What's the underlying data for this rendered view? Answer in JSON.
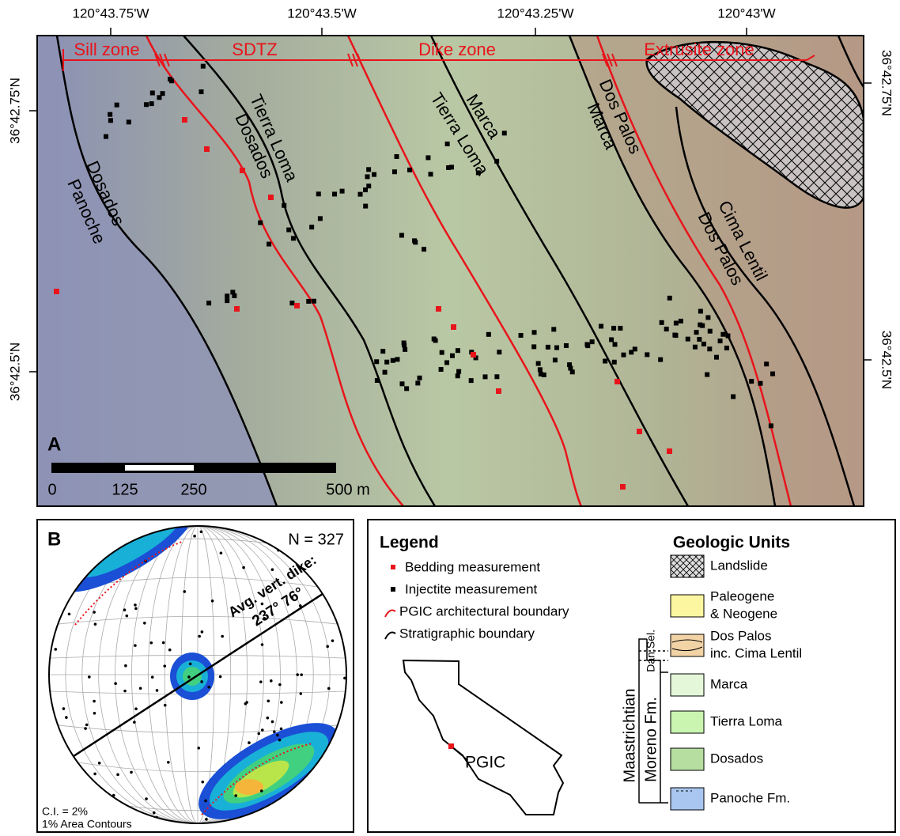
{
  "panel_a": {
    "label": "A",
    "top_coords": [
      "120°43.75'W",
      "120°43.5'W",
      "120°43.25'W",
      "120°43'W"
    ],
    "left_coords": [
      "36°42.75'N",
      "36°42.5'N"
    ],
    "right_coords": [
      "36°42.75'N",
      "36°42.5'N"
    ],
    "zones": [
      "Sill zone",
      "SDTZ",
      "Dike zone",
      "Extrusite zone"
    ],
    "units": [
      "Dosados",
      "Panoche",
      "Tierra Loma",
      "Dosados",
      "Marca",
      "Tierra Loma",
      "Dos Palos",
      "Marca",
      "Cima Lentil",
      "Dos Palos"
    ],
    "scale_labels": [
      "0",
      "125",
      "250",
      "500 m"
    ]
  },
  "panel_b": {
    "label": "B",
    "count": "N = 327",
    "dike_label": "Avg. vert. dike:",
    "dike_value": "237° 76°",
    "ci": "C.I. = 2%",
    "contours": "1% Area Contours"
  },
  "legend": {
    "title": "Legend",
    "items": [
      "Bedding measurement",
      "Injectite measurement",
      "PGIC architectural boundary",
      "Stratigraphic boundary"
    ],
    "inset_label": "PGIC"
  },
  "units": {
    "title": "Geologic Units",
    "items": [
      [
        "Landslide"
      ],
      [
        "Paleogene",
        "& Neogene"
      ],
      [
        "Dos Palos",
        "inc. Cima Lentil"
      ],
      [
        "Marca"
      ],
      [
        "Tierra Loma"
      ],
      [
        "Dosados"
      ],
      [
        "Panoche Fm."
      ]
    ],
    "stratigraphy": [
      "Maastrichtian",
      "Moreno Fm.",
      "Dan.",
      "Sel."
    ]
  }
}
